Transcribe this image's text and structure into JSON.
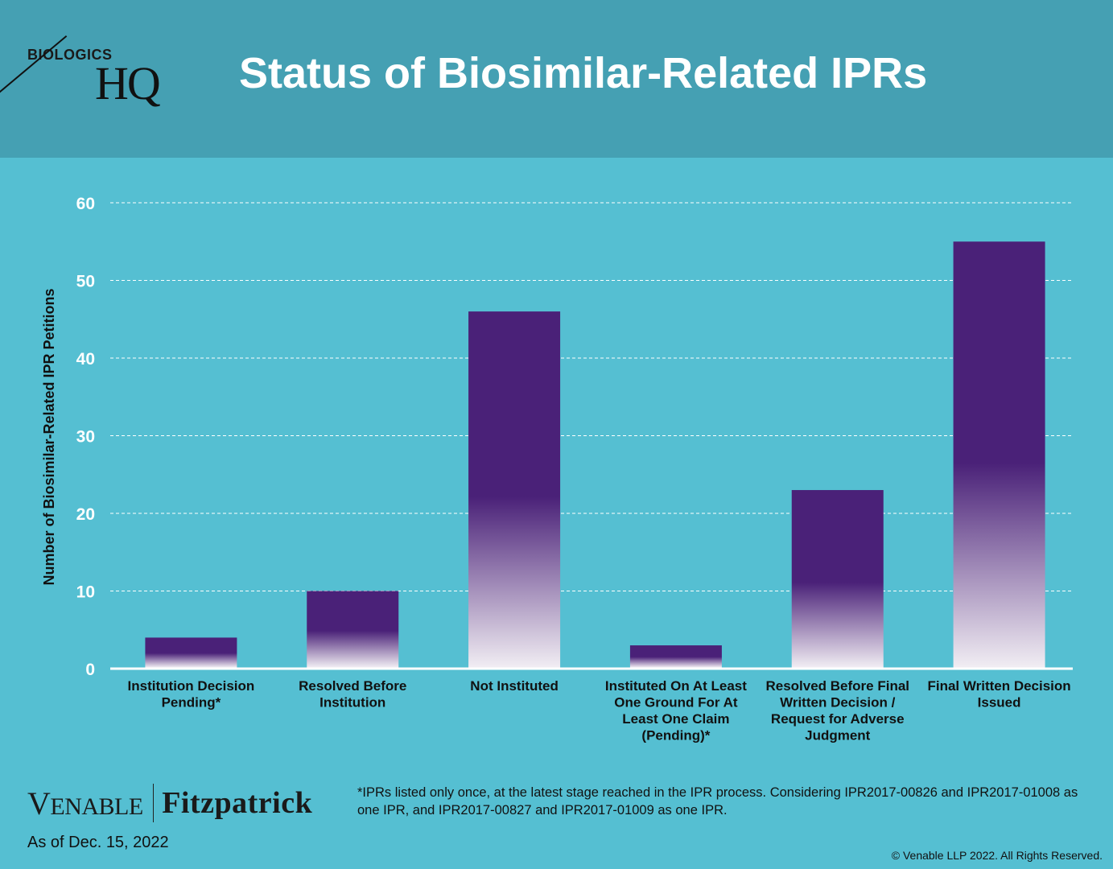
{
  "header": {
    "logo_word": "BIOLOGICS",
    "logo_mark": "HQ",
    "title": "Status of Biosimilar-Related IPRs"
  },
  "chart_data": {
    "type": "bar",
    "categories": [
      [
        "Institution Decision",
        "Pending*"
      ],
      [
        "Resolved Before",
        "Institution"
      ],
      [
        "Not Instituted"
      ],
      [
        "Instituted On At Least",
        "One Ground For At",
        "Least One Claim",
        "(Pending)*"
      ],
      [
        "Resolved Before Final",
        "Written Decision /",
        "Request for Adverse",
        "Judgment"
      ],
      [
        "Final Written Decision",
        "Issued"
      ]
    ],
    "values": [
      4,
      10,
      46,
      3,
      23,
      55
    ],
    "ylabel": "Number of Biosimilar-Related  IPR Petitions",
    "ylim": [
      0,
      60
    ],
    "yticks": [
      0,
      10,
      20,
      30,
      40,
      50,
      60
    ],
    "grid": true,
    "colors": {
      "bar_top": "#4a2178",
      "bar_bottom": "#f1edf3",
      "axis_text": "#ffffff",
      "category_text": "#111111",
      "grid": "#ffffff"
    }
  },
  "footer": {
    "brand_left": "VENABLE",
    "brand_right": "Fitzpatrick",
    "date": "As of Dec. 15, 2022",
    "footnote": "*IPRs listed only once, at the latest stage reached in the IPR process.  Considering IPR2017-00826 and IPR2017-01008 as one IPR, and IPR2017-00827 and IPR2017-01009 as one IPR.",
    "copyright": "© Venable LLP 2022. All Rights Reserved."
  }
}
